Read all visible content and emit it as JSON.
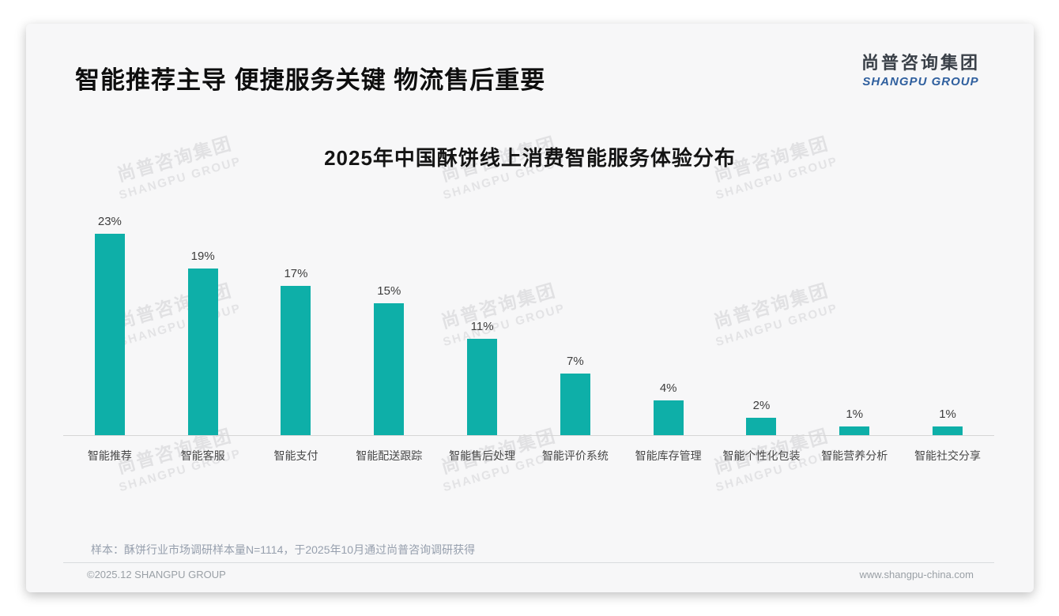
{
  "header": {
    "title": "智能推荐主导 便捷服务关键 物流售后重要",
    "logo_cn": "尚普咨询集团",
    "logo_en": "SHANGPU GROUP"
  },
  "watermark": {
    "cn": "尚普咨询集团",
    "en": "SHANGPU GROUP"
  },
  "chart_data": {
    "type": "bar",
    "title": "2025年中国酥饼线上消费智能服务体验分布",
    "categories": [
      "智能推荐",
      "智能客服",
      "智能支付",
      "智能配送跟踪",
      "智能售后处理",
      "智能评价系统",
      "智能库存管理",
      "智能个性化包装",
      "智能营养分析",
      "智能社交分享"
    ],
    "values": [
      23,
      19,
      17,
      15,
      11,
      7,
      4,
      2,
      1,
      1
    ],
    "unit": "%",
    "bar_color": "#0EAFA8",
    "ylim": [
      0,
      25
    ],
    "grid": false,
    "legend": false,
    "xlabel": "",
    "ylabel": ""
  },
  "footer": {
    "sample_note": "样本：酥饼行业市场调研样本量N=1114，于2025年10月通过尚普咨询调研获得",
    "copyright": "©2025.12 SHANGPU GROUP",
    "website": "www.shangpu-china.com"
  }
}
